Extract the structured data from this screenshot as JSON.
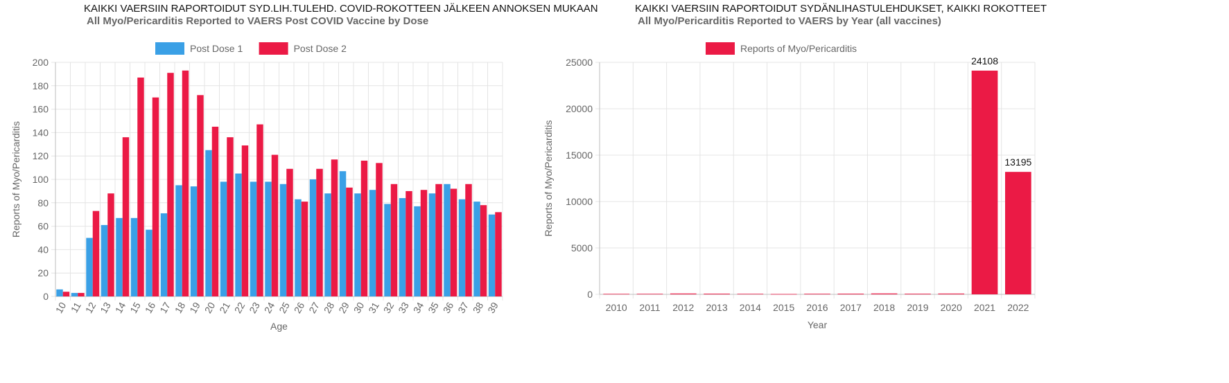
{
  "colors": {
    "dose1": "#3aa0e6",
    "dose2": "#eb1a45",
    "grid": "#e4e4e4",
    "axis": "#bdbdbd",
    "tick": "#666666"
  },
  "chart_data": [
    {
      "type": "bar",
      "title_fi": "KAIKKI VAERSIIN RAPORTOIDUT SYD.LIH.TULEHD. COVID-ROKOTTEEN JÄLKEEN ANNOKSEN MUKAAN",
      "title": "All Myo/Pericarditis Reported to VAERS Post COVID Vaccine by Dose",
      "xlabel": "Age",
      "ylabel": "Reports of Myo/Pericarditis",
      "ylim": [
        0,
        200
      ],
      "yticks": [
        0,
        20,
        40,
        60,
        80,
        100,
        120,
        140,
        160,
        180,
        200
      ],
      "legend_position": "top",
      "grid": true,
      "categories": [
        "10",
        "11",
        "12",
        "13",
        "14",
        "15",
        "16",
        "17",
        "18",
        "19",
        "20",
        "21",
        "22",
        "23",
        "24",
        "25",
        "26",
        "27",
        "28",
        "29",
        "30",
        "31",
        "32",
        "33",
        "34",
        "35",
        "36",
        "37",
        "38",
        "39"
      ],
      "series": [
        {
          "name": "Post Dose 1",
          "color": "#3aa0e6",
          "values": [
            6,
            3,
            50,
            61,
            67,
            67,
            57,
            71,
            95,
            94,
            125,
            98,
            105,
            98,
            98,
            96,
            83,
            100,
            88,
            107,
            88,
            91,
            79,
            84,
            77,
            88,
            96,
            83,
            81,
            70
          ]
        },
        {
          "name": "Post Dose 2",
          "color": "#eb1a45",
          "values": [
            4,
            3,
            73,
            88,
            136,
            187,
            170,
            191,
            193,
            172,
            145,
            136,
            129,
            147,
            121,
            109,
            81,
            109,
            117,
            93,
            116,
            114,
            96,
            90,
            91,
            96,
            92,
            96,
            78,
            72
          ]
        }
      ]
    },
    {
      "type": "bar",
      "title_fi": "KAIKKI VAERSIIN RAPORTOIDUT SYDÄNLIHASTULEHDUKSET, KAIKKI ROKOTTEET",
      "title": "All Myo/Pericarditis Reported to VAERS by Year (all vaccines)",
      "xlabel": "Year",
      "ylabel": "Reports of Myo/Pericarditis",
      "ylim": [
        0,
        25000
      ],
      "yticks": [
        0,
        5000,
        10000,
        15000,
        20000,
        25000
      ],
      "legend_position": "top",
      "grid": true,
      "categories": [
        "2010",
        "2011",
        "2012",
        "2013",
        "2014",
        "2015",
        "2016",
        "2017",
        "2018",
        "2019",
        "2020",
        "2021",
        "2022"
      ],
      "series": [
        {
          "name": "Reports of Myo/Pericarditis",
          "color": "#eb1a45",
          "values": [
            55,
            60,
            90,
            75,
            60,
            40,
            65,
            75,
            95,
            70,
            85,
            24108,
            13195
          ]
        }
      ],
      "data_labels": [
        "",
        "",
        "",
        "",
        "",
        "",
        "",
        "",
        "",
        "",
        "",
        "24108",
        "13195"
      ]
    }
  ]
}
